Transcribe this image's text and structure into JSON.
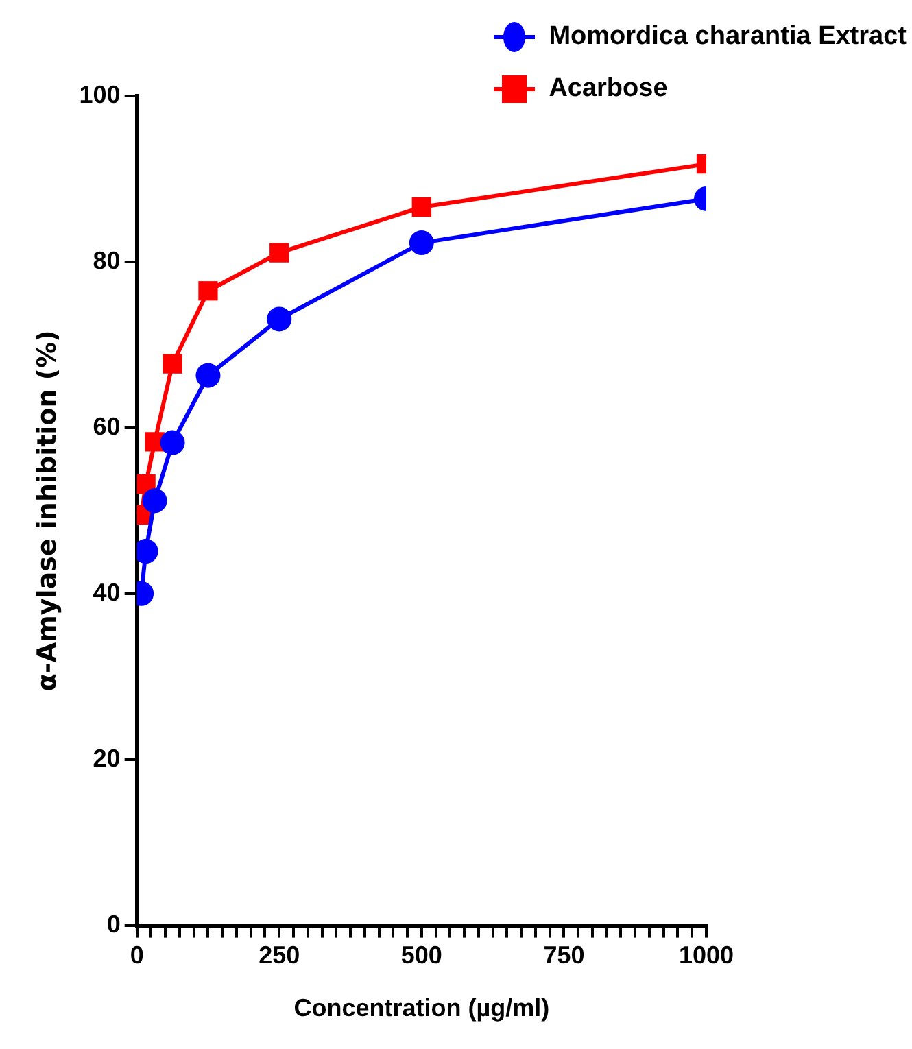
{
  "chart_data": {
    "type": "line",
    "xlabel": "Concentration (µg/ml)",
    "ylabel": "α-Amylase inhibition (%)",
    "x": [
      7.8,
      15.6,
      31.25,
      62.5,
      125,
      250,
      500,
      1000
    ],
    "series": [
      {
        "name": "Momordica charantia Extract",
        "color": "#0000ff",
        "marker": "circle",
        "values": [
          40.0,
          45.1,
          51.2,
          58.2,
          66.3,
          73.1,
          82.3,
          87.6
        ]
      },
      {
        "name": "Acarbose",
        "color": "#ff0000",
        "marker": "square",
        "values": [
          49.5,
          53.2,
          58.3,
          67.7,
          76.5,
          81.1,
          86.6,
          91.8
        ]
      }
    ],
    "xlim": [
      0,
      1000
    ],
    "xticks": [
      0,
      {
        "value": 25,
        "label": null
      },
      {
        "value": 50,
        "label": null
      },
      {
        "value": 75,
        "label": null
      },
      {
        "value": 100,
        "label": null
      },
      {
        "value": 125,
        "label": null
      },
      {
        "value": 150,
        "label": null
      },
      {
        "value": 175,
        "label": null
      },
      {
        "value": 200,
        "label": null
      },
      {
        "value": 225,
        "label": null
      },
      250,
      {
        "value": 275,
        "label": null
      },
      {
        "value": 300,
        "label": null
      },
      {
        "value": 325,
        "label": null
      },
      {
        "value": 350,
        "label": null
      },
      {
        "value": 375,
        "label": null
      },
      {
        "value": 400,
        "label": null
      },
      {
        "value": 425,
        "label": null
      },
      {
        "value": 450,
        "label": null
      },
      {
        "value": 475,
        "label": null
      },
      500,
      {
        "value": 525,
        "label": null
      },
      {
        "value": 550,
        "label": null
      },
      {
        "value": 575,
        "label": null
      },
      {
        "value": 600,
        "label": null
      },
      {
        "value": 625,
        "label": null
      },
      {
        "value": 650,
        "label": null
      },
      {
        "value": 675,
        "label": null
      },
      {
        "value": 700,
        "label": null
      },
      {
        "value": 725,
        "label": null
      },
      750,
      {
        "value": 775,
        "label": null
      },
      {
        "value": 800,
        "label": null
      },
      {
        "value": 825,
        "label": null
      },
      {
        "value": 850,
        "label": null
      },
      {
        "value": 875,
        "label": null
      },
      {
        "value": 900,
        "label": null
      },
      {
        "value": 925,
        "label": null
      },
      {
        "value": 950,
        "label": null
      },
      {
        "value": 975,
        "label": null
      },
      1000
    ],
    "ylim": [
      0,
      100
    ],
    "yticks": [
      0,
      20,
      40,
      60,
      80,
      100
    ],
    "grid": false,
    "legend": "top right",
    "line_style": "solid"
  }
}
